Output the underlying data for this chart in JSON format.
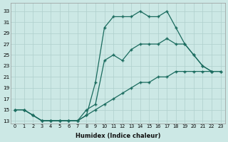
{
  "xlabel": "Humidex (Indice chaleur)",
  "bg_color": "#cce8e5",
  "line_color": "#1a6b5e",
  "grid_color": "#aecfcc",
  "xlim": [
    -0.5,
    23.5
  ],
  "ylim": [
    12.5,
    34.5
  ],
  "xticks": [
    0,
    1,
    2,
    3,
    4,
    5,
    6,
    7,
    8,
    9,
    10,
    11,
    12,
    13,
    14,
    15,
    16,
    17,
    18,
    19,
    20,
    21,
    22,
    23
  ],
  "yticks": [
    13,
    15,
    17,
    19,
    21,
    23,
    25,
    27,
    29,
    31,
    33
  ],
  "line1_x": [
    0,
    1,
    2,
    3,
    4,
    5,
    6,
    7,
    8,
    9,
    10,
    11,
    12,
    13,
    14,
    15,
    16,
    17,
    18,
    19,
    20,
    21,
    22
  ],
  "line1_y": [
    15,
    15,
    14,
    13,
    13,
    13,
    13,
    13,
    14,
    20,
    30,
    32,
    32,
    32,
    33,
    32,
    32,
    33,
    30,
    27,
    25,
    23,
    22
  ],
  "line2_x": [
    0,
    1,
    2,
    3,
    4,
    5,
    6,
    7,
    8,
    9,
    10,
    11,
    12,
    13,
    14,
    15,
    16,
    17,
    18,
    19,
    20,
    21,
    22,
    23
  ],
  "line2_y": [
    15,
    15,
    14,
    13,
    13,
    13,
    13,
    13,
    15,
    16,
    24,
    25,
    24,
    26,
    27,
    27,
    27,
    28,
    27,
    27,
    25,
    23,
    22,
    22
  ],
  "line3_x": [
    0,
    1,
    2,
    3,
    4,
    5,
    6,
    7,
    8,
    9,
    10,
    11,
    12,
    13,
    14,
    15,
    16,
    17,
    18,
    19,
    20,
    21,
    22,
    23
  ],
  "line3_y": [
    15,
    15,
    14,
    13,
    13,
    13,
    13,
    13,
    14,
    15,
    16,
    17,
    18,
    19,
    20,
    20,
    21,
    21,
    22,
    22,
    22,
    22,
    22,
    22
  ]
}
